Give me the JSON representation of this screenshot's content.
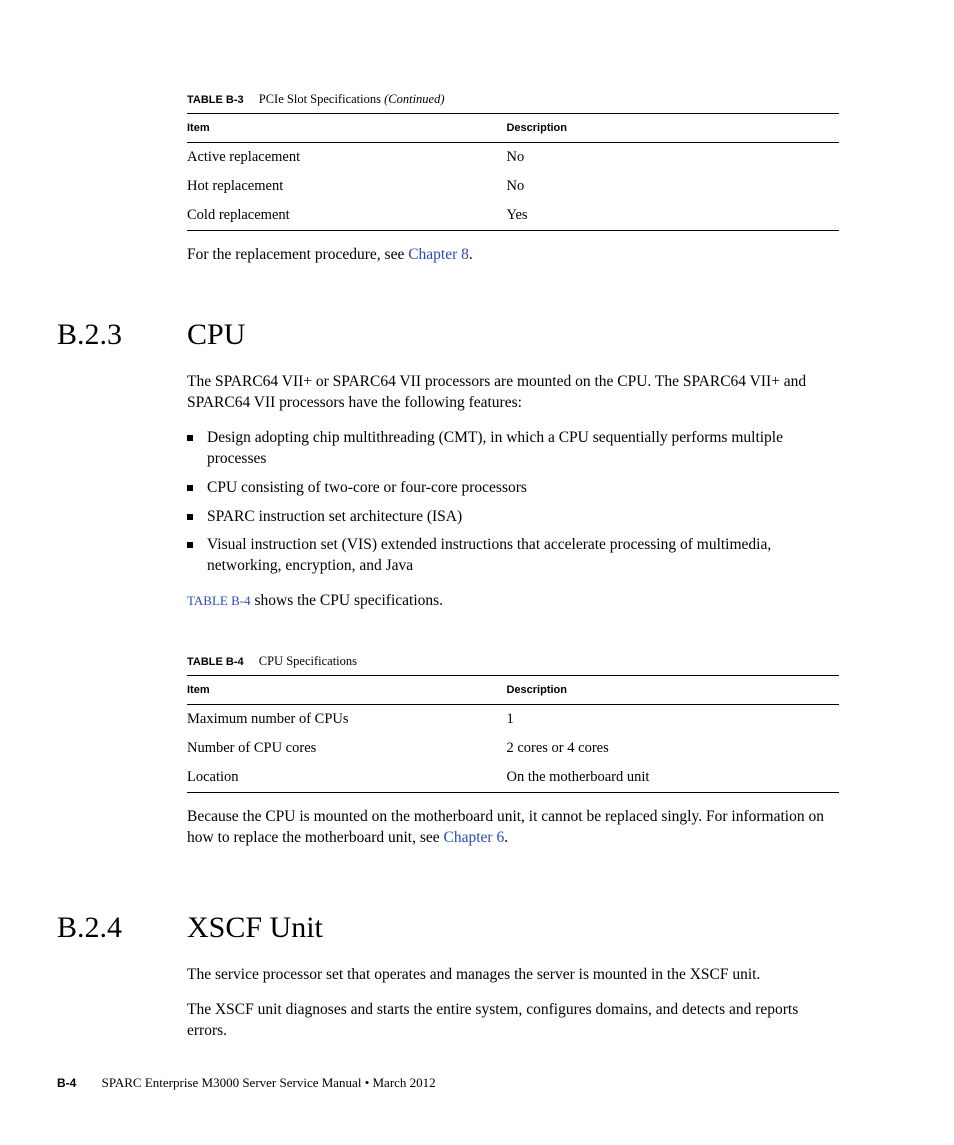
{
  "tableB3": {
    "label": "TABLE B-3",
    "title": "PCIe Slot Specifications",
    "continued": "(Continued)",
    "columns": [
      "Item",
      "Description"
    ],
    "rows": [
      [
        "Active replacement",
        "No"
      ],
      [
        "Hot replacement",
        "No"
      ],
      [
        "Cold replacement",
        "Yes"
      ]
    ]
  },
  "para_after_b3_before": "For the replacement procedure, see ",
  "para_after_b3_link": "Chapter 8",
  "para_after_b3_after": ".",
  "b23": {
    "num": "B.2.3",
    "title": "CPU",
    "intro": "The SPARC64 VII+ or SPARC64 VII processors are mounted on the CPU. The SPARC64 VII+ and SPARC64 VII processors have the following features:",
    "features": [
      "Design adopting chip multithreading (CMT), in which a CPU sequentially performs multiple processes",
      "CPU consisting of two-core or four-core processors",
      "SPARC instruction set architecture (ISA)",
      "Visual instruction set (VIS) extended instructions that accelerate processing of multimedia, networking, encryption, and Java"
    ],
    "table_lead_link": "TABLE B-4",
    "table_lead_after": " shows the CPU specifications.",
    "tableB4": {
      "label": "TABLE B-4",
      "title": "CPU Specifications",
      "columns": [
        "Item",
        "Description"
      ],
      "rows": [
        [
          "Maximum number of CPUs",
          "1"
        ],
        [
          "Number of CPU cores",
          "2 cores or 4 cores"
        ],
        [
          "Location",
          "On the motherboard unit"
        ]
      ]
    },
    "after_table_before": "Because the CPU is mounted on the motherboard unit, it cannot be replaced singly. For information on how to replace the motherboard unit, see ",
    "after_table_link": "Chapter 6",
    "after_table_after": "."
  },
  "b24": {
    "num": "B.2.4",
    "title": "XSCF Unit",
    "p1": "The service processor set that operates and manages the server is mounted in the XSCF unit.",
    "p2": "The XSCF unit diagnoses and starts the entire system, configures domains, and detects and reports errors."
  },
  "footer": {
    "pagenum": "B-4",
    "doc": "SPARC Enterprise M3000 Server Service Manual • March 2012"
  }
}
